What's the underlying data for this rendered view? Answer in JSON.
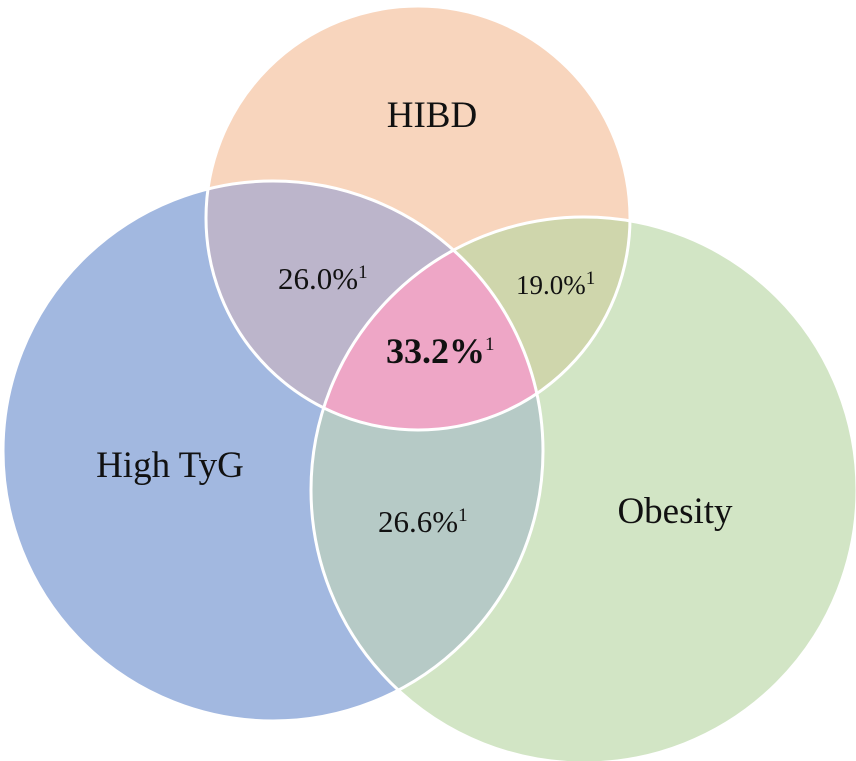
{
  "sets": [
    {
      "id": "hibd",
      "label": "HIBD",
      "color": "#f8d5bd"
    },
    {
      "id": "tyg",
      "label": "High TyG",
      "color": "#a2b8e0"
    },
    {
      "id": "obesity",
      "label": "Obesity",
      "color": "#d2e5c5"
    }
  ],
  "regions": {
    "hibd_tyg": {
      "value": "26.0%",
      "note": "1",
      "color": "#bcb5cb"
    },
    "hibd_obesity": {
      "value": "19.0%",
      "note": "1",
      "color": "#cfd6ac"
    },
    "tyg_obesity": {
      "value": "26.6%",
      "note": "1",
      "color": "#b6cac6"
    },
    "all_three": {
      "value": "33.2%",
      "note": "1",
      "color": "#eea6c6"
    }
  }
}
